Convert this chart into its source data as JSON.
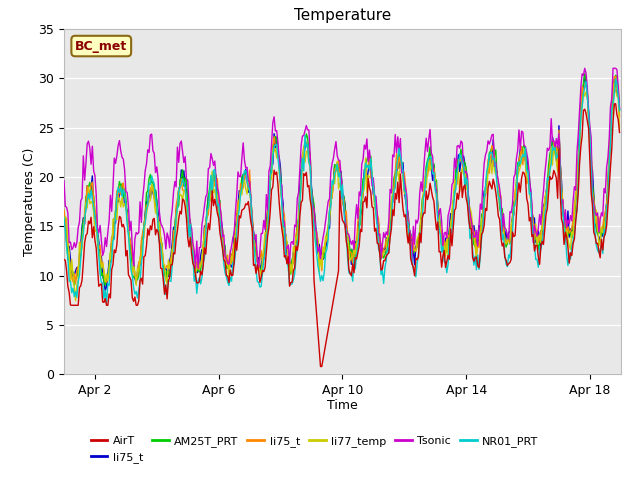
{
  "title": "Temperature",
  "xlabel": "Time",
  "ylabel": "Temperatures (C)",
  "ylim": [
    0,
    35
  ],
  "xlim": [
    0,
    432
  ],
  "xtick_positions": [
    24,
    120,
    216,
    312,
    408
  ],
  "xtick_labels": [
    "Apr 2",
    "Apr 6",
    "Apr 10",
    "Apr 14",
    "Apr 18"
  ],
  "ytick_positions": [
    0,
    5,
    10,
    15,
    20,
    25,
    30,
    35
  ],
  "fig_bg": "#ffffff",
  "plot_bg": "#e8e8e8",
  "grid_color": "#ffffff",
  "legend_box_bg": "#ffffc0",
  "legend_box_edge": "#8b6914",
  "legend_box_text": "BC_met",
  "series_colors": {
    "AirT": "#cc0000",
    "li75_t_blue": "#0000cc",
    "AM25T_PRT": "#00cc00",
    "li75_t_orange": "#ff8800",
    "li77_temp": "#cccc00",
    "Tsonic": "#cc00cc",
    "NR01_PRT": "#00cccc"
  },
  "legend_entries": [
    {
      "label": "AirT",
      "color": "#cc0000"
    },
    {
      "label": "li75_t",
      "color": "#0000cc"
    },
    {
      "label": "AM25T_PRT",
      "color": "#00cc00"
    },
    {
      "label": "li75_t",
      "color": "#ff8800"
    },
    {
      "label": "li77_temp",
      "color": "#cccc00"
    },
    {
      "label": "Tsonic",
      "color": "#cc00cc"
    },
    {
      "label": "NR01_PRT",
      "color": "#00cccc"
    }
  ]
}
